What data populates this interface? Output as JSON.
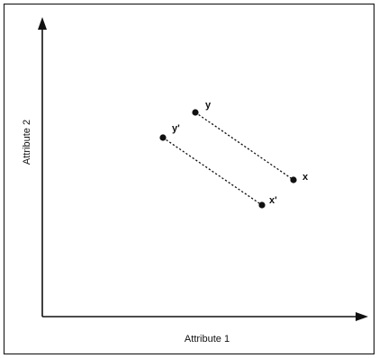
{
  "figure": {
    "x_axis_label": "Attribute 1",
    "y_axis_label": "Attribute 2"
  },
  "points": [
    {
      "id": "y",
      "label": "y"
    },
    {
      "id": "x",
      "label": "x"
    },
    {
      "id": "y-prime",
      "label": "y'"
    },
    {
      "id": "x-prime",
      "label": "x'"
    }
  ],
  "segments": [
    {
      "from": "y",
      "to": "x",
      "style": "dotted"
    },
    {
      "from": "y-prime",
      "to": "x-prime",
      "style": "dotted"
    }
  ],
  "colors": {
    "ink": "#111111",
    "background": "#ffffff"
  }
}
